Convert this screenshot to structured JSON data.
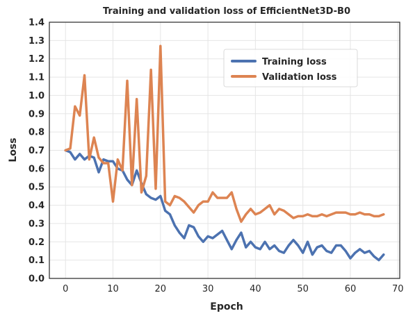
{
  "chart_data": {
    "type": "line",
    "title": "Training and validation loss of EfficientNet3D-B0",
    "xlabel": "Epoch",
    "ylabel": "Loss",
    "xlim": [
      -3.4,
      70.4
    ],
    "ylim": [
      0.0,
      1.4
    ],
    "xticks": [
      "0",
      "10",
      "20",
      "30",
      "40",
      "50",
      "60",
      "70"
    ],
    "xtick_values": [
      0,
      10,
      20,
      30,
      40,
      50,
      60,
      70
    ],
    "yticks": [
      "0.0",
      "0.1",
      "0.2",
      "0.3",
      "0.4",
      "0.5",
      "0.6",
      "0.7",
      "0.8",
      "0.9",
      "1.0",
      "1.1",
      "1.2",
      "1.3",
      "1.4"
    ],
    "ytick_values": [
      0.0,
      0.1,
      0.2,
      0.3,
      0.4,
      0.5,
      0.6,
      0.7,
      0.8,
      0.9,
      1.0,
      1.1,
      1.2,
      1.3,
      1.4
    ],
    "grid": true,
    "legend_position": "upper-right",
    "x": [
      0,
      1,
      2,
      3,
      4,
      5,
      6,
      7,
      8,
      9,
      10,
      11,
      12,
      13,
      14,
      15,
      16,
      17,
      18,
      19,
      20,
      21,
      22,
      23,
      24,
      25,
      26,
      27,
      28,
      29,
      30,
      31,
      32,
      33,
      34,
      35,
      36,
      37,
      38,
      39,
      40,
      41,
      42,
      43,
      44,
      45,
      46,
      47,
      48,
      49,
      50,
      51,
      52,
      53,
      54,
      55,
      56,
      57,
      58,
      59,
      60,
      61,
      62,
      63,
      64,
      65,
      66,
      67
    ],
    "series": [
      {
        "name": "Training loss",
        "color": "#4c72b0",
        "values": [
          0.7,
          0.69,
          0.65,
          0.68,
          0.65,
          0.67,
          0.66,
          0.58,
          0.65,
          0.64,
          0.64,
          0.6,
          0.59,
          0.54,
          0.51,
          0.59,
          0.52,
          0.46,
          0.44,
          0.43,
          0.45,
          0.37,
          0.35,
          0.29,
          0.25,
          0.22,
          0.29,
          0.28,
          0.23,
          0.2,
          0.23,
          0.22,
          0.24,
          0.26,
          0.21,
          0.16,
          0.21,
          0.25,
          0.17,
          0.2,
          0.17,
          0.16,
          0.2,
          0.16,
          0.18,
          0.15,
          0.14,
          0.18,
          0.21,
          0.18,
          0.14,
          0.2,
          0.13,
          0.17,
          0.18,
          0.15,
          0.14,
          0.18,
          0.18,
          0.15,
          0.11,
          0.14,
          0.16,
          0.14,
          0.15,
          0.12,
          0.1,
          0.13
        ]
      },
      {
        "name": "Validation loss",
        "color": "#dd8452",
        "values": [
          0.7,
          0.71,
          0.94,
          0.89,
          1.11,
          0.65,
          0.77,
          0.66,
          0.63,
          0.63,
          0.42,
          0.65,
          0.59,
          1.08,
          0.51,
          0.98,
          0.47,
          0.56,
          1.14,
          0.49,
          1.27,
          0.42,
          0.4,
          0.45,
          0.44,
          0.42,
          0.39,
          0.36,
          0.4,
          0.42,
          0.42,
          0.47,
          0.44,
          0.44,
          0.44,
          0.47,
          0.38,
          0.31,
          0.35,
          0.38,
          0.35,
          0.36,
          0.38,
          0.4,
          0.35,
          0.38,
          0.37,
          0.35,
          0.33,
          0.34,
          0.34,
          0.35,
          0.34,
          0.34,
          0.35,
          0.34,
          0.35,
          0.36,
          0.36,
          0.36,
          0.35,
          0.35,
          0.36,
          0.35,
          0.35,
          0.34,
          0.34,
          0.35
        ]
      }
    ]
  }
}
